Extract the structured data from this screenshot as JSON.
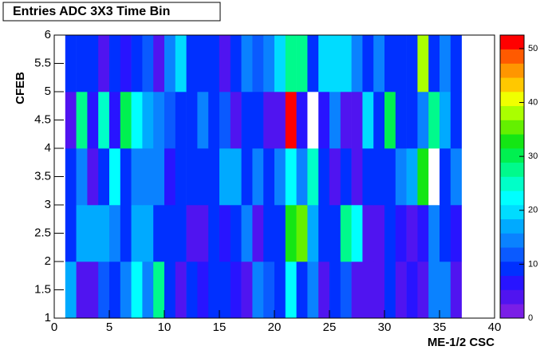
{
  "chart_data": {
    "type": "heatmap",
    "title": "Entries ADC 3X3 Time Bin",
    "x_label": "ME-1/2 CSC",
    "y_label": "CFEB",
    "x_bins": [
      1,
      2,
      3,
      4,
      5,
      6,
      7,
      8,
      9,
      10,
      11,
      12,
      13,
      14,
      15,
      16,
      17,
      18,
      19,
      20,
      21,
      22,
      23,
      24,
      25,
      26,
      27,
      28,
      29,
      30,
      31,
      32,
      33,
      34,
      35,
      36,
      37
    ],
    "y_bins": [
      1,
      2,
      3,
      4,
      5,
      6
    ],
    "z": [
      [
        18,
        4,
        4,
        13,
        8,
        14,
        21,
        14,
        27,
        10,
        4,
        9,
        6,
        8,
        10,
        6,
        4,
        14,
        12,
        8,
        22,
        10,
        14,
        4,
        9,
        12,
        3,
        4,
        4,
        8,
        3,
        6,
        4,
        14,
        15,
        4
      ],
      [
        8,
        18,
        18,
        18,
        14,
        10,
        18,
        18,
        10,
        10,
        9,
        4,
        4,
        9,
        6,
        10,
        14,
        4,
        8,
        9,
        33,
        36,
        17,
        9,
        9,
        28,
        23,
        4,
        4,
        9,
        6,
        4,
        6,
        15,
        10,
        6
      ],
      [
        10,
        14,
        5,
        10,
        22,
        10,
        14,
        15,
        14,
        6,
        8,
        9,
        10,
        8,
        18,
        18,
        9,
        14,
        10,
        15,
        22,
        14,
        24,
        9,
        4,
        9,
        4,
        9,
        9,
        9,
        15,
        17,
        33,
        0,
        8,
        14
      ],
      [
        3,
        27,
        6,
        24,
        7,
        30,
        22,
        18,
        14,
        12,
        10,
        9,
        14,
        8,
        12,
        4,
        9,
        10,
        3,
        3,
        51,
        6,
        0,
        7,
        15,
        4,
        4,
        19,
        9,
        30,
        9,
        10,
        14,
        27,
        18,
        8
      ],
      [
        9,
        9,
        9,
        3,
        10,
        6,
        9,
        12,
        4,
        14,
        19,
        9,
        10,
        9,
        3,
        8,
        14,
        13,
        15,
        19,
        27,
        27,
        9,
        20,
        20,
        20,
        14,
        9,
        15,
        8,
        10,
        9,
        38,
        10,
        15,
        9
      ]
    ],
    "xlim": [
      0,
      40
    ],
    "xticks": [
      0,
      5,
      10,
      15,
      20,
      25,
      30,
      35,
      40
    ],
    "ylim": [
      1,
      6
    ],
    "yticks": [
      1,
      1.5,
      2,
      2.5,
      3,
      3.5,
      4,
      4.5,
      5,
      5.5,
      6
    ],
    "zlim": [
      0,
      52.5
    ],
    "zticks": [
      0,
      10,
      20,
      30,
      40,
      50
    ],
    "palette": [
      "#7a1ee6",
      "#5014f0",
      "#2814ff",
      "#0030ff",
      "#0a5aff",
      "#0a82ff",
      "#00aaff",
      "#00dcff",
      "#00ffff",
      "#00ffc8",
      "#00fa8c",
      "#00f050",
      "#14e614",
      "#64f000",
      "#aaff00",
      "#f0ff00",
      "#ffc800",
      "#ff9600",
      "#ff5a00",
      "#ff0000"
    ]
  }
}
